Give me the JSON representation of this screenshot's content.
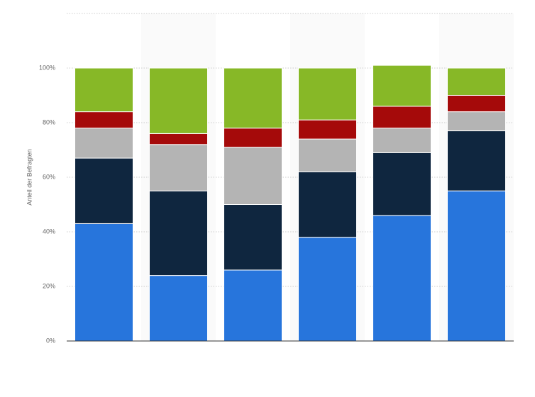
{
  "chart_data": {
    "type": "stacked_bar",
    "y_label": "Anteil der Befragten",
    "categories": [
      null,
      null,
      null,
      null,
      null,
      null
    ],
    "series": [
      {
        "color": "#2775dc",
        "values": [
          43,
          24,
          26,
          38,
          46,
          55
        ]
      },
      {
        "color": "#0f263f",
        "values": [
          24,
          31,
          24,
          24,
          23,
          22
        ]
      },
      {
        "color": "#b4b4b4",
        "values": [
          11,
          17,
          21,
          12,
          9,
          7
        ]
      },
      {
        "color": "#a50a0a",
        "values": [
          6,
          4,
          7,
          7,
          8,
          6
        ]
      },
      {
        "color": "#87b827",
        "values": [
          16,
          24,
          22,
          19,
          15,
          10
        ]
      }
    ],
    "ylim": [
      0,
      120
    ],
    "yticks": [
      {
        "value": 0,
        "label": "0%"
      },
      {
        "value": 20,
        "label": "20%"
      },
      {
        "value": 40,
        "label": "40%"
      },
      {
        "value": 60,
        "label": "60%"
      },
      {
        "value": 80,
        "label": "80%"
      },
      {
        "value": 100,
        "label": "100%"
      }
    ],
    "grid": true
  }
}
